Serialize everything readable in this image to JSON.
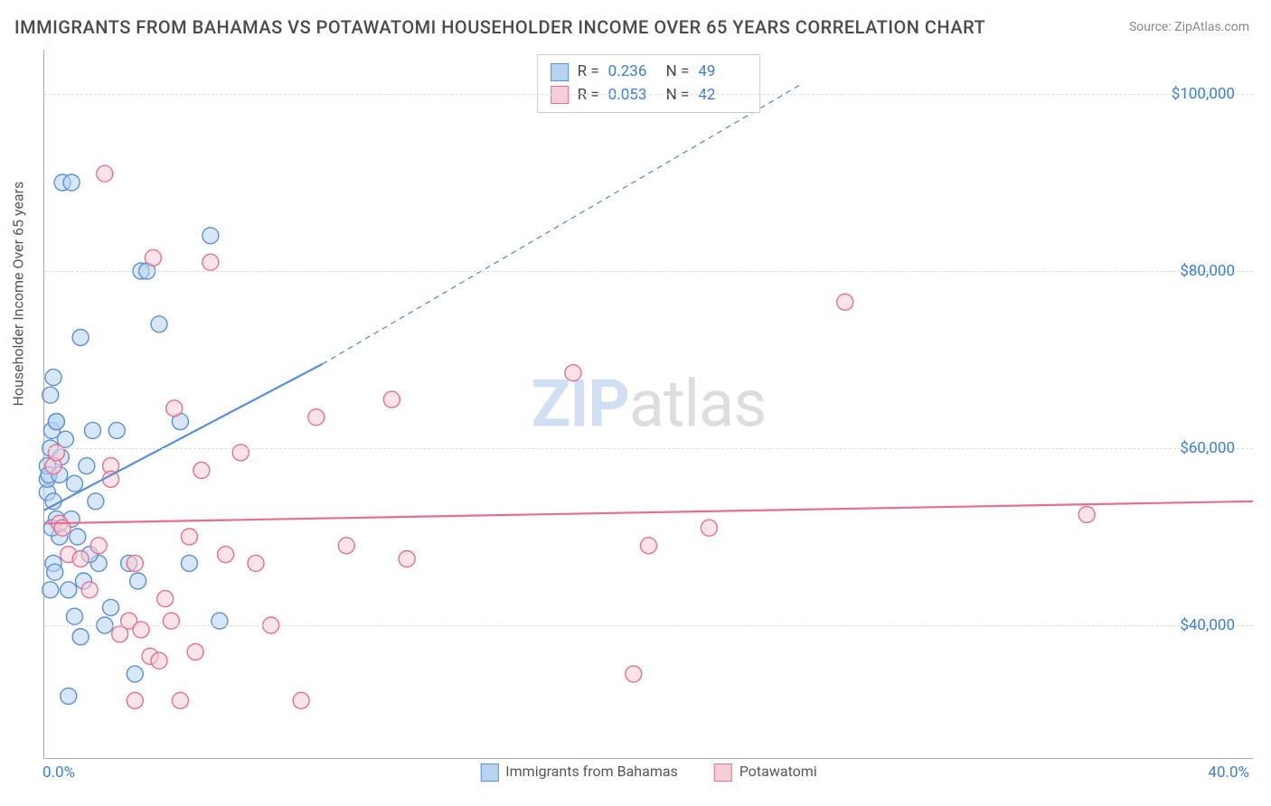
{
  "title": "IMMIGRANTS FROM BAHAMAS VS POTAWATOMI HOUSEHOLDER INCOME OVER 65 YEARS CORRELATION CHART",
  "source_label": "Source:",
  "source_value": "ZipAtlas.com",
  "watermark": {
    "bold": "ZIP",
    "rest": "atlas"
  },
  "chart": {
    "type": "scatter-correlation",
    "xlabel": null,
    "ylabel": "Householder Income Over 65 years",
    "xlim": [
      0,
      40
    ],
    "ylim": [
      25000,
      105000
    ],
    "x_ticks": [
      {
        "v": 0,
        "l": "0.0%"
      },
      {
        "v": 40,
        "l": "40.0%"
      }
    ],
    "y_ticks": [
      {
        "v": 40000,
        "l": "$40,000"
      },
      {
        "v": 60000,
        "l": "$60,000"
      },
      {
        "v": 80000,
        "l": "$80,000"
      },
      {
        "v": 100000,
        "l": "$100,000"
      }
    ],
    "grid_color": "#dddddd",
    "background_color": "#ffffff",
    "axis_color": "#aaaaaa",
    "tick_font_color": "#3b7dd8",
    "label_font_color": "#555555",
    "title_font_color": "#4a4a4a",
    "title_fontsize": 20,
    "label_fontsize": 16,
    "tick_fontsize": 17,
    "marker_radius": 9,
    "marker_stroke_width": 1.4,
    "trend_line_width": 2.2,
    "series": [
      {
        "name": "Immigrants from Bahamas",
        "fill": "#b8d4f0",
        "stroke": "#5a8fd6",
        "fill_opacity": 0.55,
        "r_value": "0.236",
        "n_value": "49",
        "trend": {
          "x1": 0,
          "y1": 53000,
          "x2_solid": 9.2,
          "y2_solid": 69500,
          "x2_dash": 25,
          "y2_dash": 101000
        },
        "points": [
          [
            0.1,
            55000
          ],
          [
            0.1,
            56500
          ],
          [
            0.1,
            58000
          ],
          [
            0.2,
            60000
          ],
          [
            0.2,
            66000
          ],
          [
            0.3,
            68000
          ],
          [
            0.3,
            54000
          ],
          [
            0.4,
            52000
          ],
          [
            0.5,
            50000
          ],
          [
            0.3,
            47000
          ],
          [
            0.2,
            44000
          ],
          [
            0.15,
            57000
          ],
          [
            0.25,
            62000
          ],
          [
            0.4,
            63000
          ],
          [
            0.5,
            57000
          ],
          [
            0.6,
            90000
          ],
          [
            0.9,
            90000
          ],
          [
            1.2,
            72500
          ],
          [
            1.6,
            62000
          ],
          [
            1.8,
            47000
          ],
          [
            2.0,
            40000
          ],
          [
            2.2,
            42000
          ],
          [
            0.8,
            44000
          ],
          [
            1.0,
            41000
          ],
          [
            1.2,
            38700
          ],
          [
            1.5,
            48000
          ],
          [
            1.7,
            54000
          ],
          [
            2.4,
            62000
          ],
          [
            2.8,
            47000
          ],
          [
            3.0,
            34500
          ],
          [
            3.2,
            80000
          ],
          [
            3.4,
            80000
          ],
          [
            3.8,
            74000
          ],
          [
            4.5,
            63000
          ],
          [
            4.8,
            47000
          ],
          [
            5.5,
            84000
          ],
          [
            5.8,
            40500
          ],
          [
            3.1,
            45000
          ],
          [
            0.4,
            63000
          ],
          [
            0.7,
            61000
          ],
          [
            0.9,
            52000
          ],
          [
            1.1,
            50000
          ],
          [
            1.3,
            45000
          ],
          [
            0.35,
            46000
          ],
          [
            0.55,
            59000
          ],
          [
            0.8,
            32000
          ],
          [
            1.0,
            56000
          ],
          [
            1.4,
            58000
          ],
          [
            0.25,
            51000
          ]
        ]
      },
      {
        "name": "Potawatomi",
        "fill": "#f7cdd6",
        "stroke": "#e76f8c",
        "fill_opacity": 0.55,
        "r_value": "0.053",
        "n_value": "42",
        "trend": {
          "x1": 0,
          "y1": 51500,
          "x2_solid": 40,
          "y2_solid": 54000
        },
        "points": [
          [
            0.3,
            58000
          ],
          [
            0.4,
            59500
          ],
          [
            0.5,
            51500
          ],
          [
            0.6,
            51000
          ],
          [
            0.8,
            48000
          ],
          [
            1.5,
            44000
          ],
          [
            1.8,
            49000
          ],
          [
            2.2,
            58000
          ],
          [
            2.5,
            39000
          ],
          [
            2.8,
            40500
          ],
          [
            3.0,
            47000
          ],
          [
            3.2,
            39500
          ],
          [
            3.5,
            36500
          ],
          [
            3.8,
            36000
          ],
          [
            4.0,
            43000
          ],
          [
            4.2,
            40500
          ],
          [
            4.5,
            31500
          ],
          [
            4.8,
            50000
          ],
          [
            5.0,
            37000
          ],
          [
            5.2,
            57500
          ],
          [
            5.5,
            81000
          ],
          [
            6.0,
            48000
          ],
          [
            6.5,
            59500
          ],
          [
            7.0,
            47000
          ],
          [
            7.5,
            40000
          ],
          [
            8.5,
            31500
          ],
          [
            9.0,
            63500
          ],
          [
            10.0,
            49000
          ],
          [
            11.5,
            65500
          ],
          [
            12.0,
            47500
          ],
          [
            2.0,
            91000
          ],
          [
            17.5,
            68500
          ],
          [
            20.0,
            49000
          ],
          [
            19.5,
            34500
          ],
          [
            22.0,
            51000
          ],
          [
            26.5,
            76500
          ],
          [
            34.5,
            52500
          ],
          [
            2.2,
            56500
          ],
          [
            3.0,
            31500
          ],
          [
            1.2,
            47500
          ],
          [
            3.6,
            81500
          ],
          [
            4.3,
            64500
          ]
        ]
      }
    ],
    "legend_bottom": [
      {
        "label": "Immigrants from Bahamas",
        "fill": "#b8d4f0",
        "stroke": "#5a8fd6"
      },
      {
        "label": "Potawatomi",
        "fill": "#f7cdd6",
        "stroke": "#e76f8c"
      }
    ],
    "stats_box": {
      "r_label": "R =",
      "n_label": "N ="
    }
  }
}
